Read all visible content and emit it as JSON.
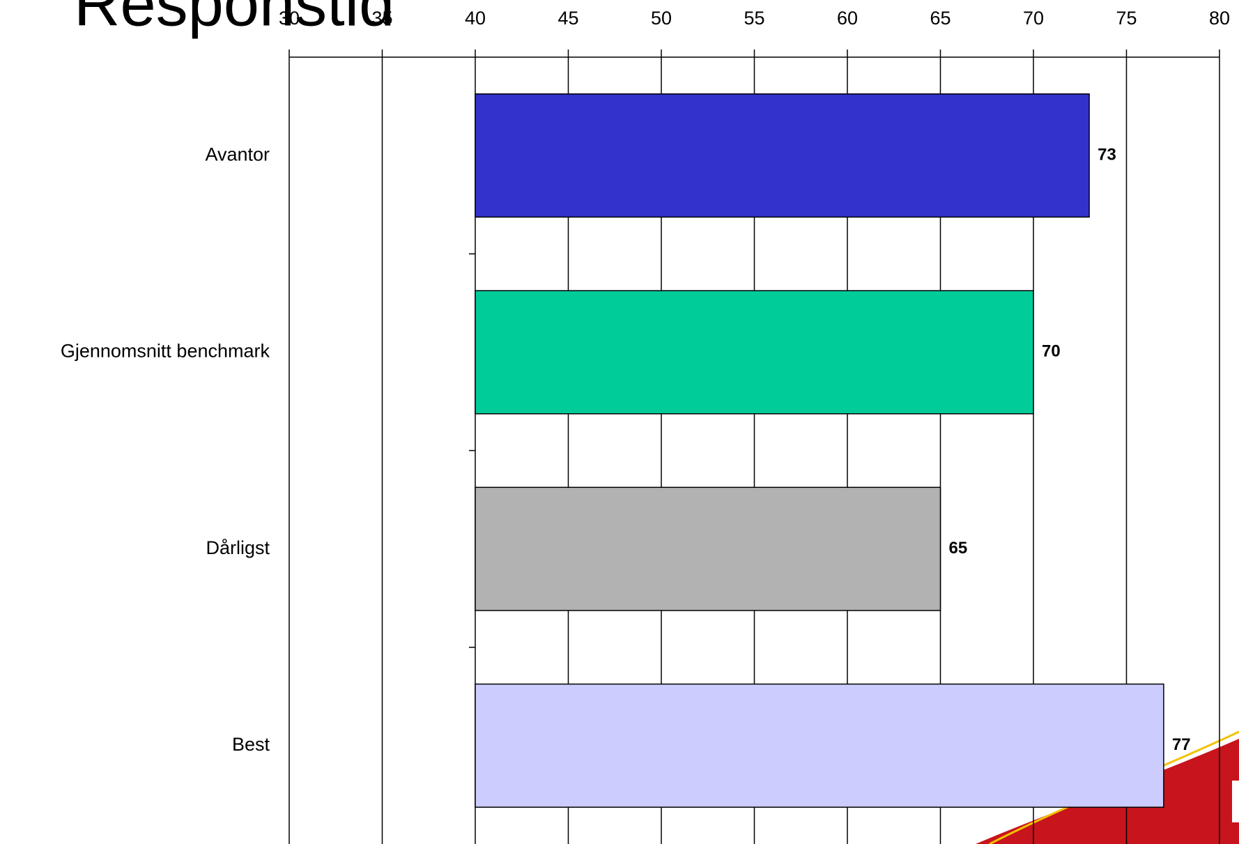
{
  "chart_data": {
    "type": "bar",
    "orientation": "horizontal",
    "title": "Responstid",
    "categories": [
      "Avantor",
      "Gjennomsnitt benchmark",
      "Dårligst",
      "Best"
    ],
    "values": [
      73,
      70,
      65,
      77
    ],
    "colors": [
      "#3333cc",
      "#00cc99",
      "#b2b2b2",
      "#ccccff"
    ],
    "base": 40,
    "xlim": [
      30,
      80
    ],
    "xticks": [
      30,
      35,
      40,
      45,
      50,
      55,
      60,
      65,
      70,
      75,
      80
    ],
    "xaxis_position": "top",
    "grid": true
  }
}
